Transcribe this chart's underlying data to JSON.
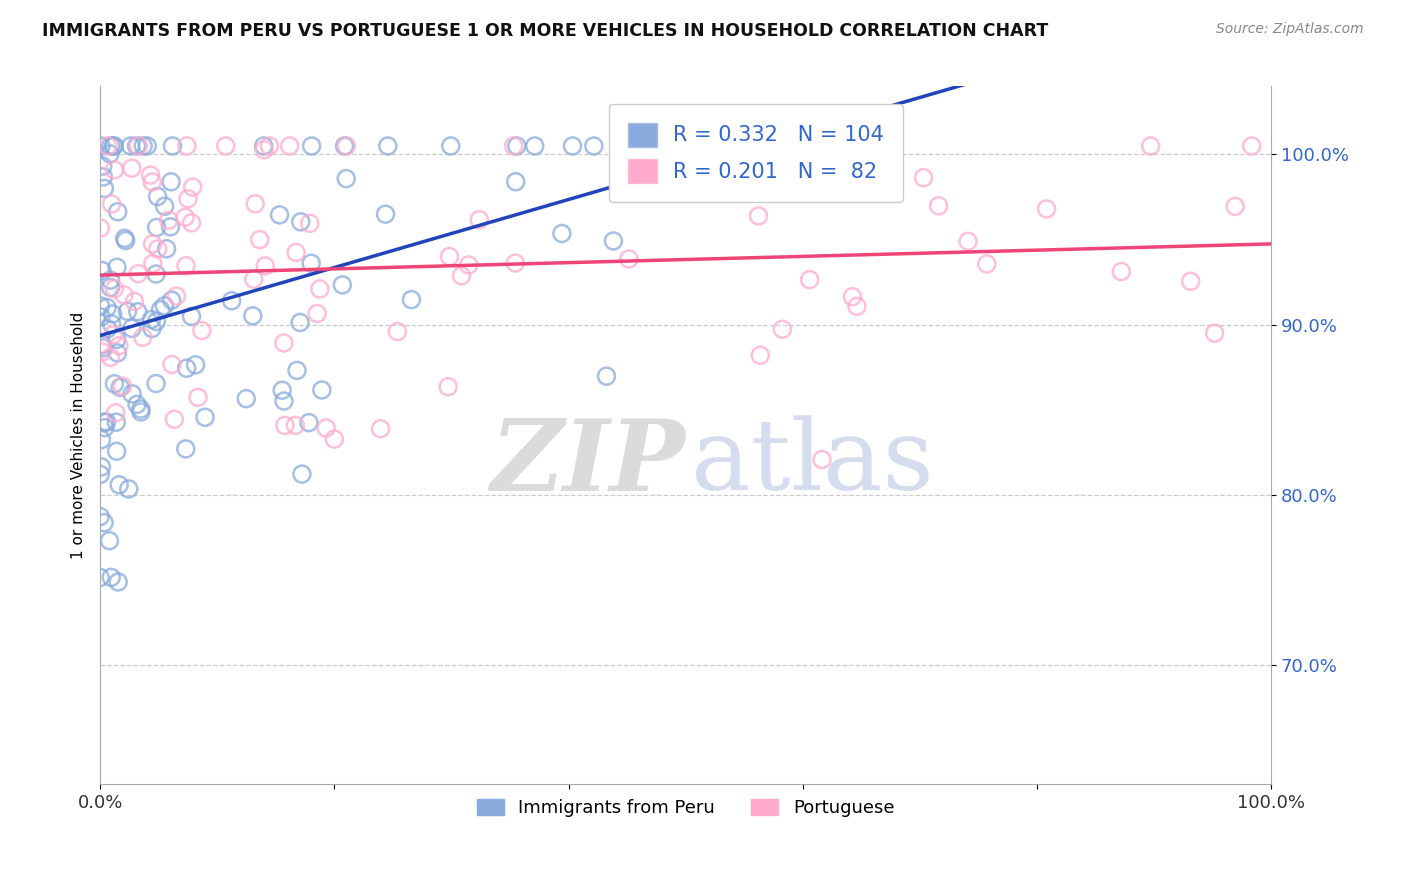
{
  "title": "IMMIGRANTS FROM PERU VS PORTUGUESE 1 OR MORE VEHICLES IN HOUSEHOLD CORRELATION CHART",
  "source": "Source: ZipAtlas.com",
  "ylabel": "1 or more Vehicles in Household",
  "watermark_zip": "ZIP",
  "watermark_atlas": "atlas",
  "legend_label_peru": "Immigrants from Peru",
  "legend_label_port": "Portuguese",
  "R_peru": 0.332,
  "N_peru": 104,
  "R_port": 0.201,
  "N_port": 82,
  "color_peru": "#88AADD",
  "color_port": "#FFAACC",
  "trendline_peru": "#2244BB",
  "trendline_port": "#EE4477",
  "xlim": [
    0.0,
    1.0
  ],
  "ylim": [
    0.63,
    1.04
  ],
  "xtick_positions": [
    0.0,
    0.2,
    0.4,
    0.6,
    0.8,
    1.0
  ],
  "xticklabels": [
    "0.0%",
    "",
    "",
    "",
    "",
    "100.0%"
  ],
  "ytick_positions": [
    0.7,
    0.8,
    0.9,
    1.0
  ],
  "yticklabels": [
    "70.0%",
    "80.0%",
    "90.0%",
    "100.0%"
  ],
  "background_color": "#ffffff",
  "grid_color": "#cccccc",
  "legend_text_color": "#3366CC",
  "ytick_color": "#3366CC"
}
